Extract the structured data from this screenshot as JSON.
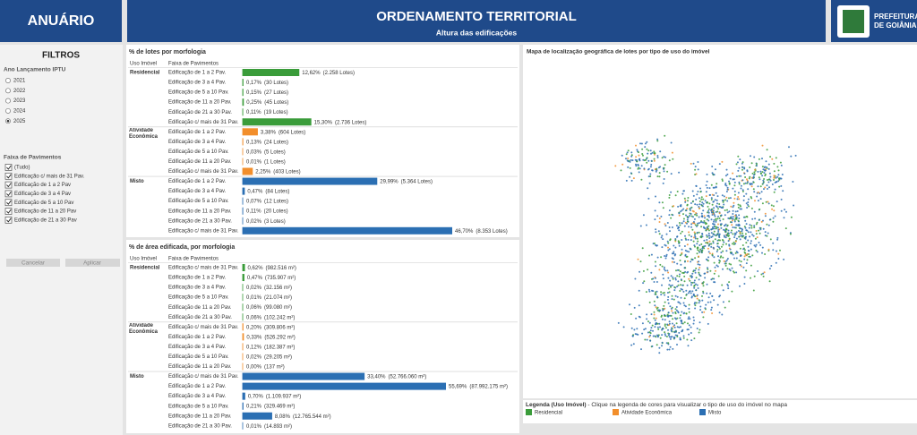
{
  "header": {
    "brand": "ANUÁRIO",
    "title": "ORDENAMENTO TERRITORIAL",
    "subtitle": "Altura das edificações",
    "logo_lines": [
      "PREFEITURA",
      "DE GOIÂNIA"
    ]
  },
  "filters": {
    "title": "FILTROS",
    "year_label": "Ano Lançamento IPTU",
    "years": [
      "2021",
      "2022",
      "2023",
      "2024",
      "2025"
    ],
    "selected_year": 4,
    "floors_label": "Faixa de Pavimentos",
    "floors": [
      "(Tudo)",
      "Edificação c/ mais de 31 Pav.",
      "Edificação de 1 a 2 Pav",
      "Edificação de 3 a 4 Pav",
      "Edificação de 5 a 10 Pav",
      "Edificação de 11 a 20 Pav",
      "Edificação de 21 a 30 Pav"
    ],
    "cancel": "Cancelar",
    "apply": "Aplicar"
  },
  "chart_data": [
    {
      "type": "bar",
      "orientation": "horizontal",
      "title": "% de lotes por morfologia",
      "columns": [
        "Uso Imóvel",
        "Faixa de Pavimentos"
      ],
      "groups": [
        {
          "name": "Residencial",
          "color": "#3a9c3a",
          "rows": [
            {
              "category": "Edificação de 1 a 2 Pav.",
              "value": 12.62,
              "value_label": "12,62%",
              "count": 2258,
              "count_label": "(2.258 Lotes)"
            },
            {
              "category": "Edificação de 3 a 4 Pav.",
              "value": 0.17,
              "value_label": "0,17%",
              "count": 30,
              "count_label": "(30 Lotes)"
            },
            {
              "category": "Edificação de 5 a 10 Pav.",
              "value": 0.15,
              "value_label": "0,15%",
              "count": 27,
              "count_label": "(27 Lotes)"
            },
            {
              "category": "Edificação de 11 a 20 Pav.",
              "value": 0.25,
              "value_label": "0,25%",
              "count": 45,
              "count_label": "(45 Lotes)"
            },
            {
              "category": "Edificação de 21 a 30 Pav.",
              "value": 0.11,
              "value_label": "0,11%",
              "count": 19,
              "count_label": "(19 Lotes)"
            },
            {
              "category": "Edificação c/ mais de 31 Pav.",
              "value": 15.3,
              "value_label": "15,30%",
              "count": 2736,
              "count_label": "(2.736 Lotes)"
            }
          ]
        },
        {
          "name": "Atividade Econômica",
          "color": "#f28e2b",
          "rows": [
            {
              "category": "Edificação de 1 a 2 Pav.",
              "value": 3.38,
              "value_label": "3,38%",
              "count": 604,
              "count_label": "(604 Lotes)"
            },
            {
              "category": "Edificação de 3 a 4 Pav.",
              "value": 0.13,
              "value_label": "0,13%",
              "count": 24,
              "count_label": "(24 Lotes)"
            },
            {
              "category": "Edificação de 5 a 10 Pav.",
              "value": 0.03,
              "value_label": "0,03%",
              "count": 5,
              "count_label": "(5 Lotes)"
            },
            {
              "category": "Edificação de 11 a 20 Pav.",
              "value": 0.01,
              "value_label": "0,01%",
              "count": 1,
              "count_label": "(1 Lotes)"
            },
            {
              "category": "Edificação c/ mais de 31 Pav.",
              "value": 2.25,
              "value_label": "2,25%",
              "count": 403,
              "count_label": "(403 Lotes)"
            }
          ]
        },
        {
          "name": "Misto",
          "color": "#2b6fb3",
          "rows": [
            {
              "category": "Edificação de 1 a 2 Pav.",
              "value": 29.99,
              "value_label": "29,99%",
              "count": 5364,
              "count_label": "(5.364 Lotes)"
            },
            {
              "category": "Edificação de 3 a 4 Pav.",
              "value": 0.47,
              "value_label": "0,47%",
              "count": 84,
              "count_label": "(84 Lotes)"
            },
            {
              "category": "Edificação de 5 a 10 Pav.",
              "value": 0.07,
              "value_label": "0,07%",
              "count": 12,
              "count_label": "(12 Lotes)"
            },
            {
              "category": "Edificação de 11 a 20 Pav.",
              "value": 0.11,
              "value_label": "0,11%",
              "count": 20,
              "count_label": "(20 Lotes)"
            },
            {
              "category": "Edificação de 21 a 30 Pav.",
              "value": 0.02,
              "value_label": "0,02%",
              "count": 3,
              "count_label": "(3 Lotes)"
            },
            {
              "category": "Edificação c/ mais de 31 Pav.",
              "value": 46.7,
              "value_label": "46,70%",
              "count": 8353,
              "count_label": "(8.353 Lotes)"
            }
          ]
        }
      ]
    },
    {
      "type": "bar",
      "orientation": "horizontal",
      "title": "% de área edificada, por morfologia",
      "columns": [
        "Uso Imóvel",
        "Faixa de Pavimentos"
      ],
      "groups": [
        {
          "name": "Residencial",
          "color": "#3a9c3a",
          "rows": [
            {
              "category": "Edificação c/ mais de 31 Pav.",
              "value": 0.62,
              "value_label": "0,62%",
              "count": 982516,
              "count_label": "(982.516 m²)"
            },
            {
              "category": "Edificação de 1 a 2 Pav.",
              "value": 0.47,
              "value_label": "0,47%",
              "count": 735907,
              "count_label": "(735.907 m²)"
            },
            {
              "category": "Edificação de 3 a 4 Pav.",
              "value": 0.02,
              "value_label": "0,02%",
              "count": 32156,
              "count_label": "(32.156 m²)"
            },
            {
              "category": "Edificação de 5 a 10 Pav.",
              "value": 0.01,
              "value_label": "0,01%",
              "count": 21074,
              "count_label": "(21.074 m²)"
            },
            {
              "category": "Edificação de 11 a 20 Pav.",
              "value": 0.06,
              "value_label": "0,06%",
              "count": 99080,
              "count_label": "(99.080 m²)"
            },
            {
              "category": "Edificação de 21 a 30 Pav.",
              "value": 0.06,
              "value_label": "0,06%",
              "count": 102242,
              "count_label": "(102.242 m²)"
            }
          ]
        },
        {
          "name": "Atividade Econômica",
          "color": "#f28e2b",
          "rows": [
            {
              "category": "Edificação c/ mais de 31 Pav.",
              "value": 0.2,
              "value_label": "0,20%",
              "count": 309806,
              "count_label": "(309.806 m²)"
            },
            {
              "category": "Edificação de 1 a 2 Pav.",
              "value": 0.33,
              "value_label": "0,33%",
              "count": 526292,
              "count_label": "(526.292 m²)"
            },
            {
              "category": "Edificação de 3 a 4 Pav.",
              "value": 0.12,
              "value_label": "0,12%",
              "count": 182387,
              "count_label": "(182.387 m²)"
            },
            {
              "category": "Edificação de 5 a 10 Pav.",
              "value": 0.02,
              "value_label": "0,02%",
              "count": 29205,
              "count_label": "(29.205 m²)"
            },
            {
              "category": "Edificação de 11 a 20 Pav.",
              "value": 0.0,
              "value_label": "0,00%",
              "count": 137,
              "count_label": "(137 m²)"
            }
          ]
        },
        {
          "name": "Misto",
          "color": "#2b6fb3",
          "rows": [
            {
              "category": "Edificação c/ mais de 31 Pav.",
              "value": 33.4,
              "value_label": "33,40%",
              "count": 52766060,
              "count_label": "(52.766.060 m²)"
            },
            {
              "category": "Edificação de 1 a 2 Pav.",
              "value": 55.69,
              "value_label": "55,69%",
              "count": 87992175,
              "count_label": "(87.992.175 m²)"
            },
            {
              "category": "Edificação de 3 a 4 Pav.",
              "value": 0.7,
              "value_label": "0,70%",
              "count": 1109937,
              "count_label": "(1.109.937 m²)"
            },
            {
              "category": "Edificação de 5 a 10 Pav.",
              "value": 0.21,
              "value_label": "0,21%",
              "count": 329469,
              "count_label": "(329.469 m²)"
            },
            {
              "category": "Edificação de 11 a 20 Pav.",
              "value": 8.08,
              "value_label": "8,08%",
              "count": 12765544,
              "count_label": "(12.765.544 m²)"
            },
            {
              "category": "Edificação de 21 a 30 Pav.",
              "value": 0.01,
              "value_label": "0,01%",
              "count": 14893,
              "count_label": "(14.893 m²)"
            }
          ]
        }
      ]
    }
  ],
  "map": {
    "title": "Mapa de localização geográfica de lotes por tipo de uso do imóvel",
    "legend_title": "Legenda (Uso Imóvel)",
    "legend_note": " - Clique na legenda de cores para visualizar o tipo de uso do imóvel no mapa",
    "legend": [
      {
        "name": "Residencial",
        "color": "#3a9c3a"
      },
      {
        "name": "Atividade Econômica",
        "color": "#f28e2b"
      },
      {
        "name": "Misto",
        "color": "#2b6fb3"
      }
    ]
  }
}
